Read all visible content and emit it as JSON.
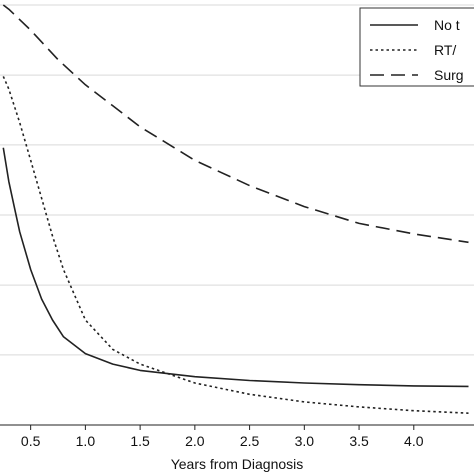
{
  "chart_data": {
    "type": "line",
    "xlabel": "Years from Diagnosis",
    "ylabel": "",
    "xlim": [
      0.22,
      4.55
    ],
    "ylim": [
      0,
      1
    ],
    "x_ticks": [
      "0.5",
      "1.0",
      "1.5",
      "2.0",
      "2.5",
      "3.0",
      "3.5",
      "4.0"
    ],
    "x_tick_values": [
      0.5,
      1.0,
      1.5,
      2.0,
      2.5,
      3.0,
      3.5,
      4.0
    ],
    "y_grid_values": [
      0.0,
      0.167,
      0.333,
      0.5,
      0.667,
      0.833,
      1.0
    ],
    "grid": "horizontal",
    "legend_position": "top-right",
    "series": [
      {
        "name": "No t",
        "style": "solid",
        "x": [
          0.25,
          0.3,
          0.35,
          0.4,
          0.5,
          0.6,
          0.7,
          0.8,
          1.0,
          1.25,
          1.5,
          2.0,
          2.5,
          3.0,
          3.5,
          4.0,
          4.5
        ],
        "y": [
          0.66,
          0.58,
          0.52,
          0.46,
          0.37,
          0.3,
          0.25,
          0.21,
          0.17,
          0.145,
          0.13,
          0.115,
          0.106,
          0.1,
          0.096,
          0.093,
          0.092
        ]
      },
      {
        "name": "RT/",
        "style": "dotted",
        "x": [
          0.25,
          0.3,
          0.4,
          0.5,
          0.6,
          0.7,
          0.8,
          1.0,
          1.25,
          1.5,
          2.0,
          2.5,
          3.0,
          3.5,
          4.0,
          4.5
        ],
        "y": [
          0.83,
          0.8,
          0.72,
          0.63,
          0.54,
          0.45,
          0.37,
          0.25,
          0.18,
          0.145,
          0.1,
          0.073,
          0.055,
          0.043,
          0.034,
          0.028
        ]
      },
      {
        "name": "Surg",
        "style": "dashed",
        "x": [
          0.25,
          0.3,
          0.5,
          0.75,
          1.0,
          1.25,
          1.5,
          2.0,
          2.5,
          3.0,
          3.5,
          4.0,
          4.5
        ],
        "y": [
          1.0,
          0.99,
          0.94,
          0.87,
          0.81,
          0.76,
          0.71,
          0.63,
          0.57,
          0.52,
          0.48,
          0.455,
          0.435
        ]
      }
    ],
    "colors": {
      "line": "#222222",
      "grid": "#d9d9d9",
      "legend_border": "#333333"
    }
  }
}
